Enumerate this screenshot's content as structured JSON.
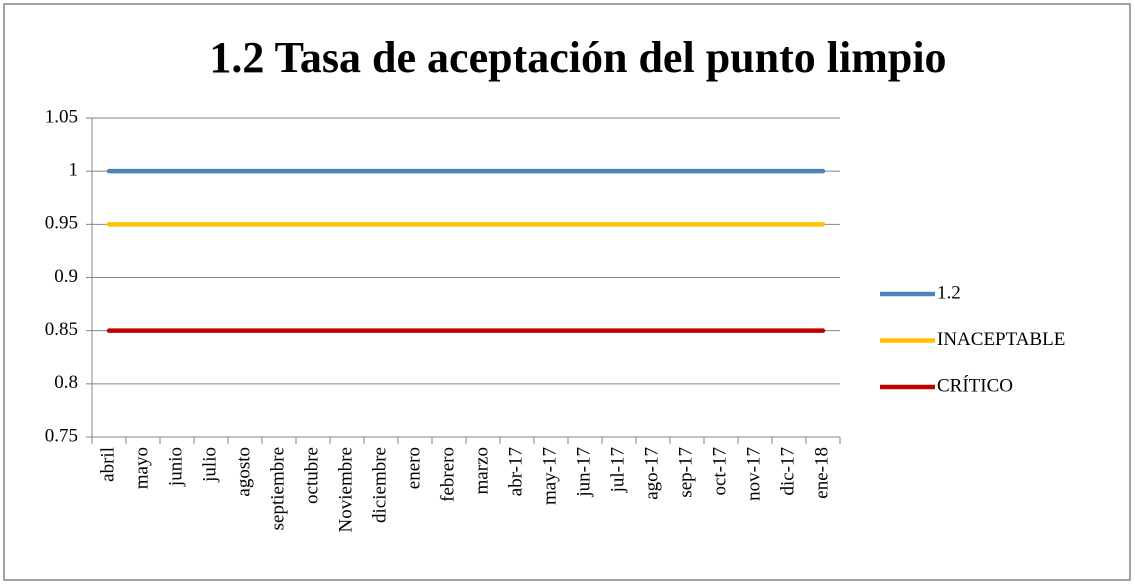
{
  "chart_data": {
    "type": "line",
    "title": "1.2 Tasa de aceptación del punto limpio",
    "categories": [
      "abril",
      "mayo",
      "junio",
      "julio",
      "agosto",
      "septiembre",
      "octubre",
      "Noviembre",
      "diciembre",
      "enero",
      "febrero",
      "marzo",
      "abr-17",
      "may-17",
      "jun-17",
      "jul-17",
      "ago-17",
      "sep-17",
      "oct-17",
      "nov-17",
      "dic-17",
      "ene-18"
    ],
    "series": [
      {
        "name": "1.2",
        "color": "#4f81bd",
        "values": [
          1,
          1,
          1,
          1,
          1,
          1,
          1,
          1,
          1,
          1,
          1,
          1,
          1,
          1,
          1,
          1,
          1,
          1,
          1,
          1,
          1,
          1
        ]
      },
      {
        "name": "INACEPTABLE",
        "color": "#ffc000",
        "values": [
          0.95,
          0.95,
          0.95,
          0.95,
          0.95,
          0.95,
          0.95,
          0.95,
          0.95,
          0.95,
          0.95,
          0.95,
          0.95,
          0.95,
          0.95,
          0.95,
          0.95,
          0.95,
          0.95,
          0.95,
          0.95,
          0.95
        ]
      },
      {
        "name": "CRÍTICO",
        "color": "#c00000",
        "values": [
          0.85,
          0.85,
          0.85,
          0.85,
          0.85,
          0.85,
          0.85,
          0.85,
          0.85,
          0.85,
          0.85,
          0.85,
          0.85,
          0.85,
          0.85,
          0.85,
          0.85,
          0.85,
          0.85,
          0.85,
          0.85,
          0.85
        ]
      }
    ],
    "ylim": [
      0.75,
      1.05
    ],
    "yticks": [
      0.75,
      0.8,
      0.85,
      0.9,
      0.95,
      1,
      1.05
    ],
    "grid": true,
    "legend": "right"
  }
}
